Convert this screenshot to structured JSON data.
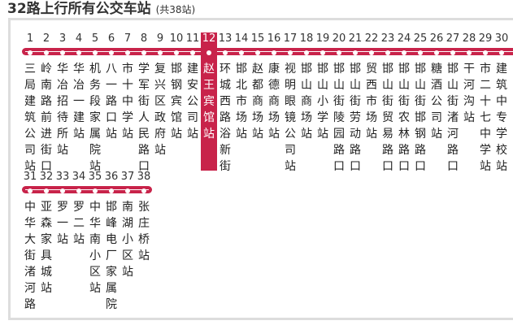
{
  "title": "32路上行所有公交车站",
  "count": "(共38站)",
  "current_station": 12,
  "colors": {
    "accent": "#c8234a",
    "border": "#dddddd"
  },
  "stations": [
    {
      "num": "1",
      "name": "三局建筑公司站"
    },
    {
      "num": "2",
      "name": "岭南路前进街口"
    },
    {
      "num": "3",
      "name": "华冶招待所站"
    },
    {
      "num": "4",
      "name": "华冶一建站"
    },
    {
      "num": "5",
      "name": "机务段家属院站"
    },
    {
      "num": "6",
      "name": "八一路口站"
    },
    {
      "num": "7",
      "name": "市十中学站"
    },
    {
      "num": "8",
      "name": "学军街人民路口"
    },
    {
      "num": "9",
      "name": "复兴区政府站"
    },
    {
      "num": "10",
      "name": "邯钢宾馆站"
    },
    {
      "num": "11",
      "name": "建安公司站"
    },
    {
      "num": "12",
      "name": "赵王宾馆站"
    },
    {
      "num": "13",
      "name": "环城西路浴新街"
    },
    {
      "num": "14",
      "name": "邯北市场站"
    },
    {
      "num": "15",
      "name": "赵都商场站"
    },
    {
      "num": "16",
      "name": "康德商场站"
    },
    {
      "num": "17",
      "name": "视明眼镜公司站"
    },
    {
      "num": "18",
      "name": "邯山商场站"
    },
    {
      "num": "19",
      "name": "邯山小学站"
    },
    {
      "num": "20",
      "name": "邯山街陵园路口"
    },
    {
      "num": "21",
      "name": "邯山街劳动路口"
    },
    {
      "num": "22",
      "name": "贸西市场站"
    },
    {
      "num": "23",
      "name": "邯山街贸易路口"
    },
    {
      "num": "24",
      "name": "邯山街农林路口"
    },
    {
      "num": "25",
      "name": "邯山街邯钢路口"
    },
    {
      "num": "26",
      "name": "糖酒公司站"
    },
    {
      "num": "27",
      "name": "邯山街渚河路口"
    },
    {
      "num": "28",
      "name": "干河沟站"
    },
    {
      "num": "29",
      "name": "市二十七中学站"
    },
    {
      "num": "30",
      "name": "建筑中专学校站"
    },
    {
      "num": "31",
      "name": "中华大街渚河路"
    },
    {
      "num": "32",
      "name": "亚森家具城站"
    },
    {
      "num": "33",
      "name": "罗一站"
    },
    {
      "num": "34",
      "name": "罗二站"
    },
    {
      "num": "35",
      "name": "中华南小区站"
    },
    {
      "num": "36",
      "name": "邯峰电厂家属院"
    },
    {
      "num": "37",
      "name": "南湖小区站"
    },
    {
      "num": "38",
      "name": "张庄桥站"
    }
  ]
}
